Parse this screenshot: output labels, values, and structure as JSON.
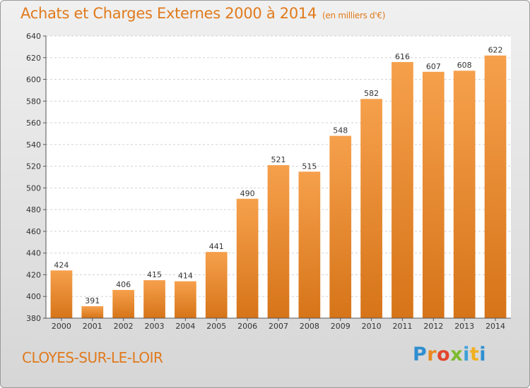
{
  "header": {
    "title": "Achats et Charges Externes 2000 à 2014",
    "unit": "(en milliers d'€)"
  },
  "footer": {
    "location": "CLOYES-SUR-LE-LOIR",
    "brand_letters": [
      "P",
      "r",
      "o",
      "x",
      "i",
      "t",
      "i"
    ]
  },
  "chart_data": {
    "type": "bar",
    "title": "Achats et Charges Externes 2000 à 2014",
    "subtitle": "(en milliers d'€)",
    "xlabel": "",
    "ylabel": "",
    "categories": [
      "2000",
      "2001",
      "2002",
      "2003",
      "2004",
      "2005",
      "2006",
      "2007",
      "2008",
      "2009",
      "2010",
      "2011",
      "2012",
      "2013",
      "2014"
    ],
    "values": [
      424,
      391,
      406,
      415,
      414,
      441,
      490,
      521,
      515,
      548,
      582,
      616,
      607,
      608,
      622
    ],
    "ylim": [
      380,
      640
    ],
    "yticks": [
      380,
      400,
      420,
      440,
      460,
      480,
      500,
      520,
      540,
      560,
      580,
      600,
      620,
      640
    ],
    "grid": true,
    "bar_color_top": "#f6a04c",
    "bar_color_bottom": "#d67418",
    "accent_color": "#e07a1c"
  }
}
